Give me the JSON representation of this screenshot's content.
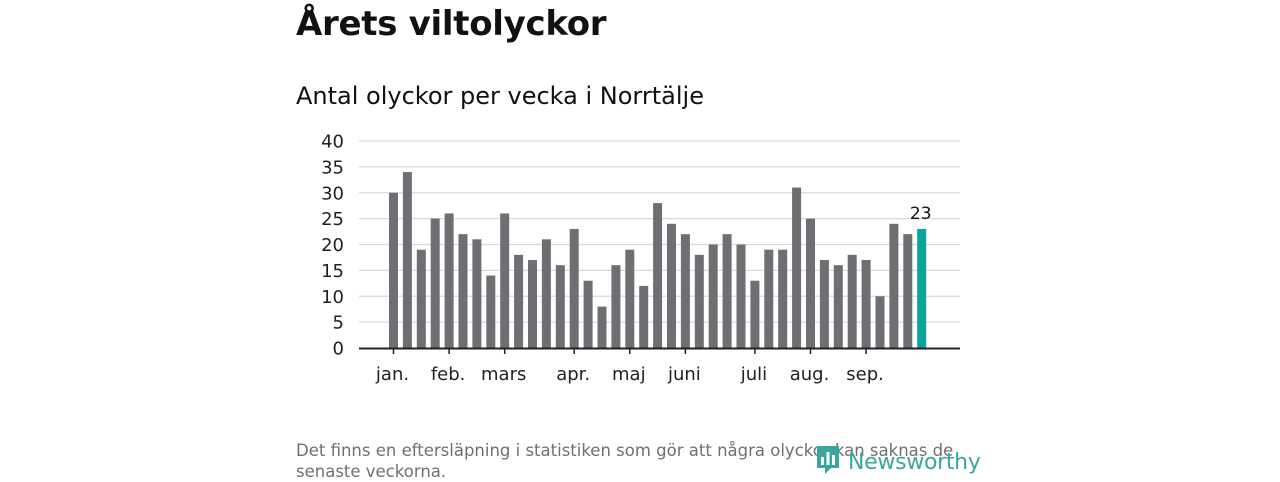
{
  "title": "Årets viltolyckor",
  "subtitle": "Antal olyckor per vecka i Norrtälje",
  "footnote": "Det finns en eftersläpning i statistiken som gör att några olyckor kan saknas de senaste veckorna.",
  "brand": {
    "name": "Newsworthy",
    "icon": "newsworthy-logo-icon",
    "color": "#3aa6a0"
  },
  "colors": {
    "bar": "#6e6e73",
    "highlight": "#0aa49c",
    "grid": "#d9d9d9",
    "axis": "#222222"
  },
  "chart_data": {
    "type": "bar",
    "title": "Antal olyckor per vecka i Norrtälje",
    "xlabel": "",
    "ylabel": "",
    "ylim": [
      0,
      40
    ],
    "yticks": [
      0,
      5,
      10,
      15,
      20,
      25,
      30,
      35,
      40
    ],
    "grid": true,
    "values": [
      30,
      34,
      19,
      25,
      26,
      22,
      21,
      14,
      26,
      18,
      17,
      21,
      16,
      23,
      13,
      8,
      16,
      19,
      12,
      28,
      24,
      22,
      18,
      20,
      22,
      20,
      13,
      19,
      19,
      31,
      25,
      17,
      16,
      18,
      17,
      10,
      24,
      22,
      23
    ],
    "highlight_index": 38,
    "highlight_label": "23",
    "month_labels": [
      {
        "label": "jan.",
        "bar_index": 0
      },
      {
        "label": "feb.",
        "bar_index": 4
      },
      {
        "label": "mars",
        "bar_index": 8
      },
      {
        "label": "apr.",
        "bar_index": 13
      },
      {
        "label": "maj",
        "bar_index": 17
      },
      {
        "label": "juni",
        "bar_index": 21
      },
      {
        "label": "juli",
        "bar_index": 26
      },
      {
        "label": "aug.",
        "bar_index": 30
      },
      {
        "label": "sep.",
        "bar_index": 34
      }
    ]
  }
}
